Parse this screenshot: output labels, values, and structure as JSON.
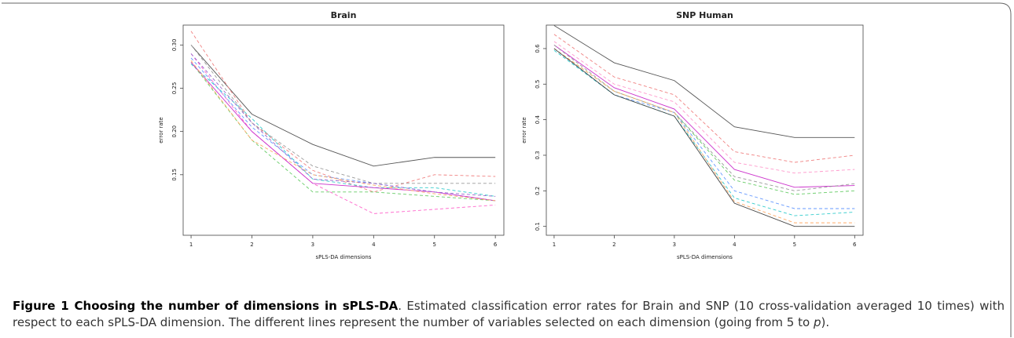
{
  "chart_data": [
    {
      "type": "line",
      "title": "Brain",
      "x_label": "sPLS-DA dimensions",
      "y_label": "error rate",
      "x": [
        1,
        2,
        3,
        4,
        5,
        6
      ],
      "xlim": [
        0.87,
        6.14
      ],
      "xticks": [
        1,
        2,
        3,
        4,
        5,
        6
      ],
      "ylim": [
        0.08,
        0.323
      ],
      "yticks": [
        {
          "value": 0.15,
          "label": "0.15"
        },
        {
          "value": 0.2,
          "label": "0.20"
        },
        {
          "value": 0.25,
          "label": "0.25"
        },
        {
          "value": 0.3,
          "label": "0.30"
        }
      ],
      "series": [
        {
          "color": "#555555",
          "dashed": false,
          "values": [
            0.3,
            0.22,
            0.185,
            0.16,
            0.17,
            0.17
          ]
        },
        {
          "color": "#f08080",
          "dashed": true,
          "values": [
            0.316,
            0.21,
            0.155,
            0.13,
            0.15,
            0.148
          ]
        },
        {
          "color": "#ff66cc",
          "dashed": true,
          "values": [
            0.29,
            0.2,
            0.14,
            0.105,
            0.11,
            0.115
          ]
        },
        {
          "color": "#66cc66",
          "dashed": true,
          "values": [
            0.28,
            0.19,
            0.13,
            0.13,
            0.125,
            0.12
          ]
        },
        {
          "color": "#6699ff",
          "dashed": true,
          "values": [
            0.285,
            0.205,
            0.15,
            0.14,
            0.13,
            0.12
          ]
        },
        {
          "color": "#33cccc",
          "dashed": true,
          "values": [
            0.278,
            0.215,
            0.145,
            0.135,
            0.135,
            0.125
          ]
        },
        {
          "color": "#cc33cc",
          "dashed": false,
          "values": [
            0.28,
            0.2,
            0.14,
            0.135,
            0.13,
            0.12
          ]
        },
        {
          "color": "#999999",
          "dashed": true,
          "values": [
            0.3,
            0.21,
            0.16,
            0.14,
            0.14,
            0.14
          ]
        },
        {
          "color": "#ffaa66",
          "dashed": true,
          "values": [
            0.282,
            0.19,
            0.15,
            0.138,
            0.128,
            0.12
          ]
        },
        {
          "color": "#9966cc",
          "dashed": true,
          "values": [
            0.29,
            0.21,
            0.145,
            0.14,
            0.13,
            0.125
          ]
        }
      ]
    },
    {
      "type": "line",
      "title": "SNP Human",
      "x_label": "sPLS-DA dimensions",
      "y_label": "error rate",
      "x": [
        1,
        2,
        3,
        4,
        5,
        6
      ],
      "xlim": [
        0.87,
        6.14
      ],
      "xticks": [
        1,
        2,
        3,
        4,
        5,
        6
      ],
      "ylim": [
        0.075,
        0.666
      ],
      "yticks": [
        0.1,
        0.2,
        0.3,
        0.4,
        0.5,
        0.6
      ],
      "series": [
        {
          "color": "#555555",
          "dashed": false,
          "values": [
            0.665,
            0.56,
            0.51,
            0.38,
            0.35,
            0.35
          ]
        },
        {
          "color": "#f08080",
          "dashed": true,
          "values": [
            0.64,
            0.52,
            0.47,
            0.31,
            0.28,
            0.3
          ]
        },
        {
          "color": "#ff99cc",
          "dashed": true,
          "values": [
            0.62,
            0.5,
            0.45,
            0.28,
            0.25,
            0.26
          ]
        },
        {
          "color": "#cc33cc",
          "dashed": false,
          "values": [
            0.61,
            0.49,
            0.43,
            0.26,
            0.21,
            0.215
          ]
        },
        {
          "color": "#999999",
          "dashed": true,
          "values": [
            0.61,
            0.48,
            0.42,
            0.24,
            0.2,
            0.22
          ]
        },
        {
          "color": "#66cc66",
          "dashed": true,
          "values": [
            0.6,
            0.48,
            0.42,
            0.23,
            0.19,
            0.2
          ]
        },
        {
          "color": "#6699ff",
          "dashed": true,
          "values": [
            0.6,
            0.47,
            0.42,
            0.2,
            0.15,
            0.15
          ]
        },
        {
          "color": "#33cccc",
          "dashed": true,
          "values": [
            0.595,
            0.47,
            0.41,
            0.18,
            0.13,
            0.14
          ]
        },
        {
          "color": "#ffaa66",
          "dashed": true,
          "values": [
            0.6,
            0.48,
            0.42,
            0.17,
            0.11,
            0.11
          ]
        },
        {
          "color": "#444444",
          "dashed": false,
          "values": [
            0.6,
            0.47,
            0.41,
            0.165,
            0.1,
            0.1
          ]
        }
      ]
    }
  ],
  "caption": {
    "label": "Figure 1 Choosing the number of dimensions in sPLS-DA",
    "text": ". Estimated classification error rates for Brain and SNP (10 cross-validation averaged 10 times) with respect to each sPLS-DA dimension. The different lines represent the number of variables selected on each dimension (going from 5 to ",
    "italic": "p",
    "end": ")."
  }
}
